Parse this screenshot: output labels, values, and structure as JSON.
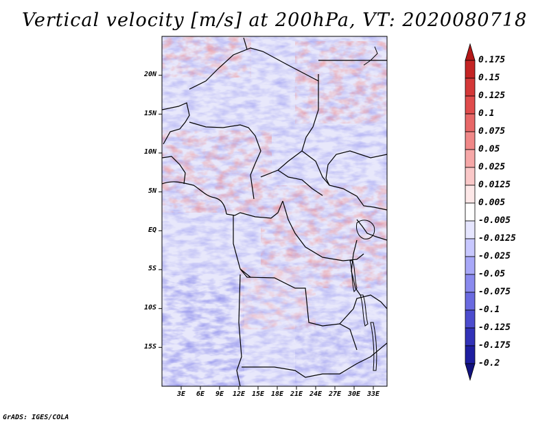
{
  "chart_data": {
    "type": "heatmap",
    "title": "Vertical velocity [m/s] at 200hPa, VT: 2020080718",
    "variable": "Vertical velocity",
    "units": "m/s",
    "level": "200hPa",
    "valid_time": "2020080718",
    "x_ticks": [
      "3E",
      "6E",
      "9E",
      "12E",
      "15E",
      "18E",
      "21E",
      "24E",
      "27E",
      "30E",
      "33E"
    ],
    "y_ticks": [
      "20N",
      "15N",
      "10N",
      "5N",
      "EQ",
      "5S",
      "10S",
      "15S"
    ],
    "lon_range": [
      0,
      35
    ],
    "lat_range": [
      -20,
      25
    ],
    "colorbar": {
      "labels": [
        "0.175",
        "0.15",
        "0.125",
        "0.1",
        "0.075",
        "0.05",
        "0.025",
        "0.0125",
        "0.005",
        "-0.005",
        "-0.0125",
        "-0.025",
        "-0.05",
        "-0.075",
        "-0.1",
        "-0.125",
        "-0.175",
        "-0.2"
      ],
      "colors": [
        "#b41818",
        "#c42424",
        "#d43838",
        "#e04c4c",
        "#e86868",
        "#f08888",
        "#f6a8a8",
        "#fac8c8",
        "#fde8e8",
        "#ffffff",
        "#e6e6ff",
        "#c8c8ff",
        "#a8a8f8",
        "#8a8aee",
        "#6a6ae0",
        "#4c4cce",
        "#3232b8",
        "#1e1ea0",
        "#12127e"
      ]
    }
  },
  "credit": "GrADS: IGES/COLA"
}
